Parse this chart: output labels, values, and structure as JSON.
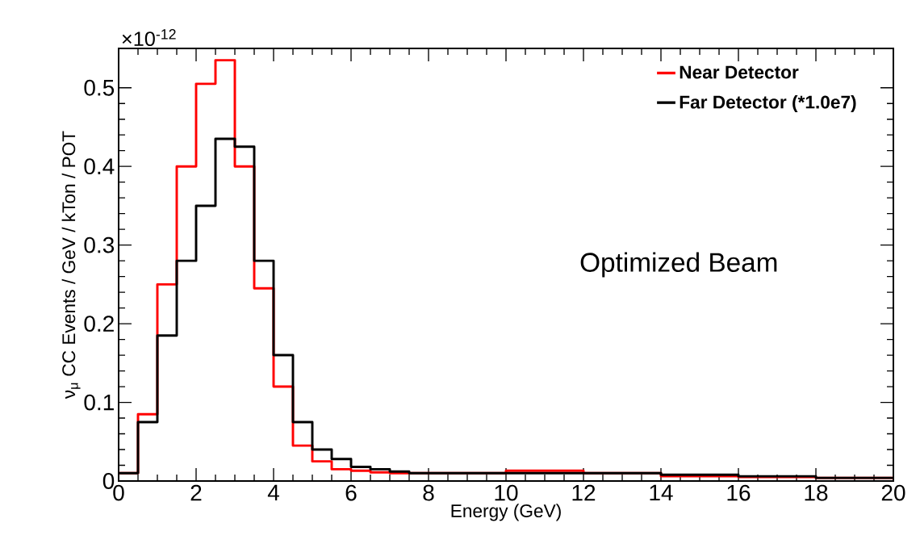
{
  "chart_data": {
    "type": "histogram",
    "xlabel": "Energy (GeV)",
    "ylabel": "ν$_{μ}$ CC Events / GeV / kTon / POT",
    "bins": [
      0,
      0.5,
      1,
      1.5,
      2,
      2.5,
      3,
      3.5,
      4,
      4.5,
      5,
      5.5,
      6,
      6.5,
      7,
      7.5,
      8,
      10,
      12,
      14,
      16,
      18,
      20
    ],
    "series": [
      {
        "name": "Near Detector",
        "color": "#ff0000",
        "values": [
          0.01,
          0.085,
          0.25,
          0.4,
          0.505,
          0.535,
          0.4,
          0.245,
          0.12,
          0.045,
          0.025,
          0.015,
          0.013,
          0.011,
          0.01,
          0.01,
          0.01,
          0.013,
          0.01,
          0.006,
          0.005,
          0.004
        ]
      },
      {
        "name": "Far Detector (*1.0e7)",
        "color": "#000000",
        "values": [
          0.01,
          0.075,
          0.185,
          0.28,
          0.35,
          0.435,
          0.425,
          0.28,
          0.16,
          0.075,
          0.04,
          0.028,
          0.018,
          0.015,
          0.012,
          0.01,
          0.01,
          0.01,
          0.01,
          0.008,
          0.006,
          0.004
        ]
      }
    ],
    "xlim": [
      0,
      20
    ],
    "ylim": [
      0,
      0.55
    ],
    "xticks": [
      0,
      2,
      4,
      6,
      8,
      10,
      12,
      14,
      16,
      18,
      20
    ],
    "yticks": [
      0,
      0.1,
      0.2,
      0.3,
      0.4,
      0.5
    ],
    "legend": "top right",
    "annotations": [
      "×10$^{-12}$",
      "Optimized Beam"
    ]
  }
}
